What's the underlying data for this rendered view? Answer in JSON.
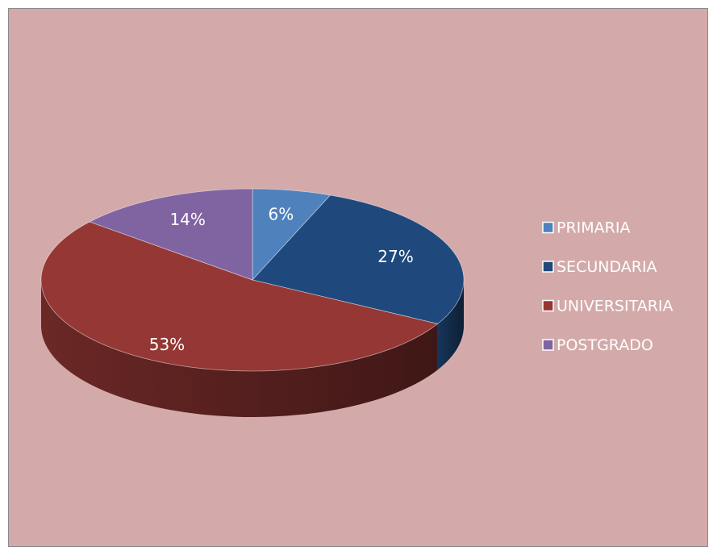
{
  "chart_data": {
    "type": "pie",
    "categories": [
      "PRIMARIA",
      "SECUNDARIA",
      "UNIVERSITARIA",
      "POSTGRADO"
    ],
    "values": [
      6,
      27,
      53,
      14
    ],
    "value_labels": [
      "6%",
      "27%",
      "53%",
      "14%"
    ],
    "colors": [
      "#4f81bd",
      "#1f497d",
      "#953735",
      "#8064a2"
    ],
    "legend": "right"
  }
}
